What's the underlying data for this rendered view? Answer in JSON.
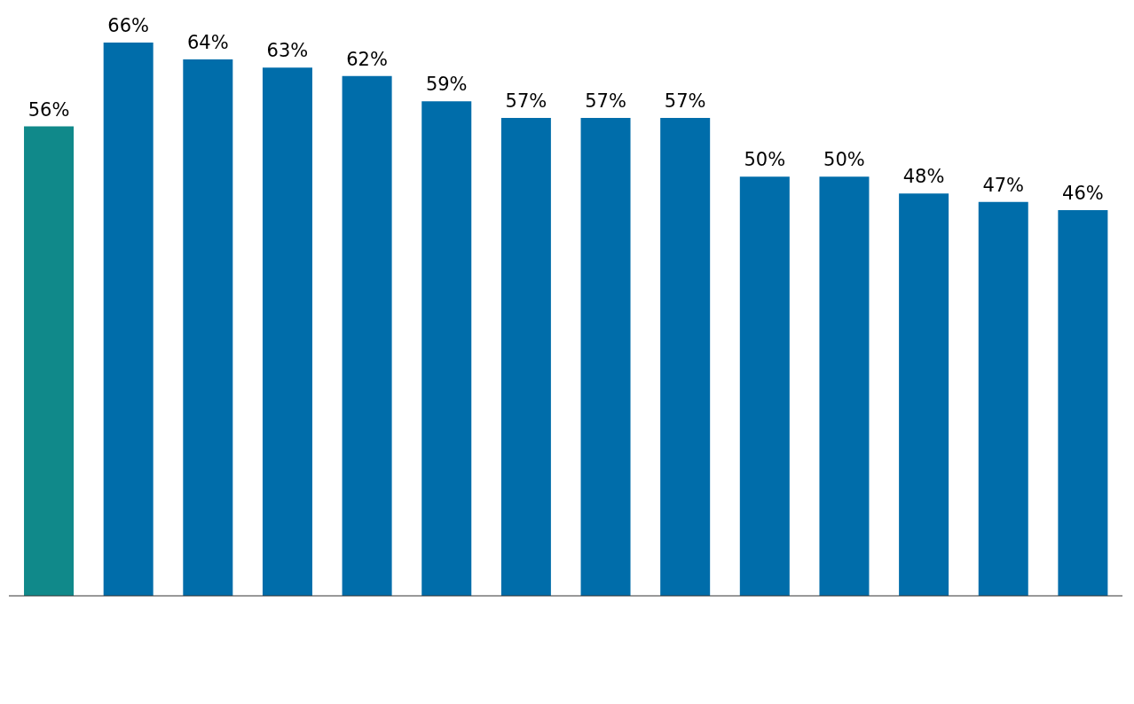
{
  "chart_data": {
    "type": "bar",
    "categories": [
      null,
      null,
      null,
      null,
      null,
      null,
      null,
      null,
      null,
      null,
      null,
      null,
      null,
      null
    ],
    "values": [
      56,
      66,
      64,
      63,
      62,
      59,
      57,
      57,
      57,
      50,
      50,
      48,
      47,
      46
    ],
    "colors": [
      "#10898a",
      "#006daa",
      "#006daa",
      "#006daa",
      "#006daa",
      "#006daa",
      "#006daa",
      "#006daa",
      "#006daa",
      "#006daa",
      "#006daa",
      "#006daa",
      "#006daa",
      "#006daa"
    ],
    "value_labels": [
      "56%",
      "66%",
      "64%",
      "63%",
      "62%",
      "59%",
      "57%",
      "57%",
      "57%",
      "50%",
      "50%",
      "48%",
      "47%",
      "46%"
    ]
  }
}
